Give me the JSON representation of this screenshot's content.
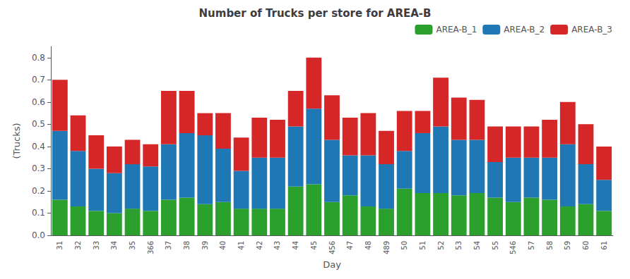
{
  "chart_data": {
    "type": "bar",
    "title": "Number of Trucks per store for AREA-B",
    "x_label": "Day",
    "y_label": "(Trucks)",
    "categories": [
      "31",
      "32",
      "33",
      "34",
      "35",
      "366",
      "37",
      "38",
      "39",
      "40",
      "41",
      "42",
      "43",
      "44",
      "45",
      "456",
      "47",
      "48",
      "489",
      "50",
      "51",
      "52",
      "53",
      "54",
      "55",
      "546",
      "57",
      "58",
      "59",
      "60",
      "61"
    ],
    "series": [
      {
        "name": "AREA-B_1",
        "color": "#2ca02c",
        "values": [
          0.16,
          0.13,
          0.11,
          0.1,
          0.12,
          0.11,
          0.16,
          0.17,
          0.14,
          0.15,
          0.12,
          0.12,
          0.12,
          0.22,
          0.23,
          0.15,
          0.18,
          0.13,
          0.12,
          0.21,
          0.19,
          0.19,
          0.18,
          0.19,
          0.17,
          0.15,
          0.17,
          0.16,
          0.13,
          0.14,
          0.11
        ]
      },
      {
        "name": "AREA-B_2",
        "color": "#1f77b4",
        "values": [
          0.31,
          0.25,
          0.19,
          0.18,
          0.2,
          0.2,
          0.25,
          0.29,
          0.31,
          0.24,
          0.17,
          0.23,
          0.23,
          0.27,
          0.34,
          0.28,
          0.18,
          0.23,
          0.2,
          0.17,
          0.27,
          0.3,
          0.25,
          0.24,
          0.16,
          0.2,
          0.18,
          0.19,
          0.28,
          0.18,
          0.14
        ]
      },
      {
        "name": "AREA-B_3",
        "color": "#d62728",
        "values": [
          0.23,
          0.16,
          0.15,
          0.12,
          0.11,
          0.1,
          0.24,
          0.19,
          0.1,
          0.16,
          0.15,
          0.18,
          0.17,
          0.16,
          0.23,
          0.2,
          0.17,
          0.19,
          0.15,
          0.18,
          0.1,
          0.22,
          0.19,
          0.18,
          0.16,
          0.14,
          0.14,
          0.17,
          0.19,
          0.18,
          0.15
        ]
      }
    ],
    "stacked": true,
    "ylim": [
      0.0,
      0.85
    ],
    "yticks": [
      {
        "value": 0.0,
        "label": "0.0"
      },
      0.1,
      0.2,
      0.3,
      0.4,
      0.5,
      0.6,
      0.7,
      0.8
    ],
    "grid": false,
    "legend": "upper right"
  }
}
